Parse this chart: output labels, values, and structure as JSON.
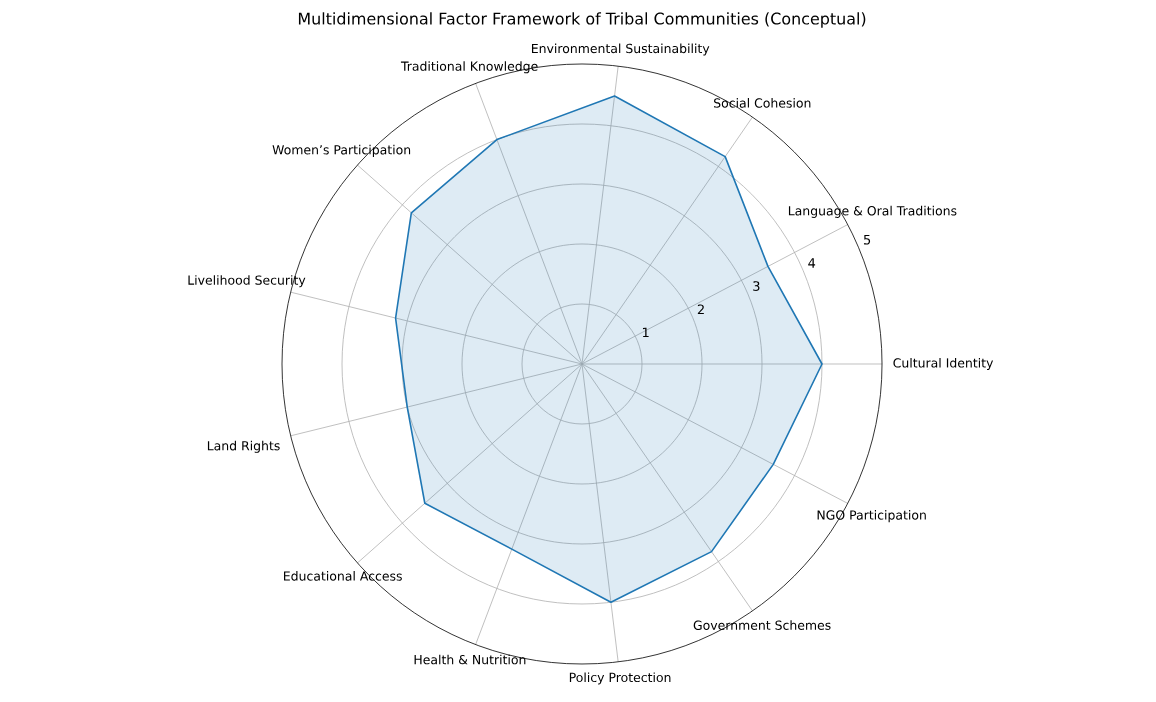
{
  "chart_data": {
    "type": "radar",
    "title": "Multidimensional Factor Framework of Tribal Communities (Conceptual)",
    "categories": [
      "Environmental Sustainability",
      "Social Cohesion",
      "Language & Oral Traditions",
      "Cultural Identity",
      "NGO Participation",
      "Government Schemes",
      "Policy Protection",
      "Health & Nutrition",
      "Educational Access",
      "Land Rights",
      "Livelihood Security",
      "Women’s Participation",
      "Traditional Knowledge"
    ],
    "series": [
      {
        "color": "#1f77b4",
        "values": [
          4.5,
          4.2,
          3.5,
          4,
          3.6,
          3.8,
          4,
          3.3,
          3.5,
          3.0,
          3.2,
          3.8,
          4
        ]
      }
    ],
    "ylim": [
      0,
      5
    ],
    "yticks": [
      1,
      2,
      3,
      4,
      5
    ],
    "grid": true
  }
}
